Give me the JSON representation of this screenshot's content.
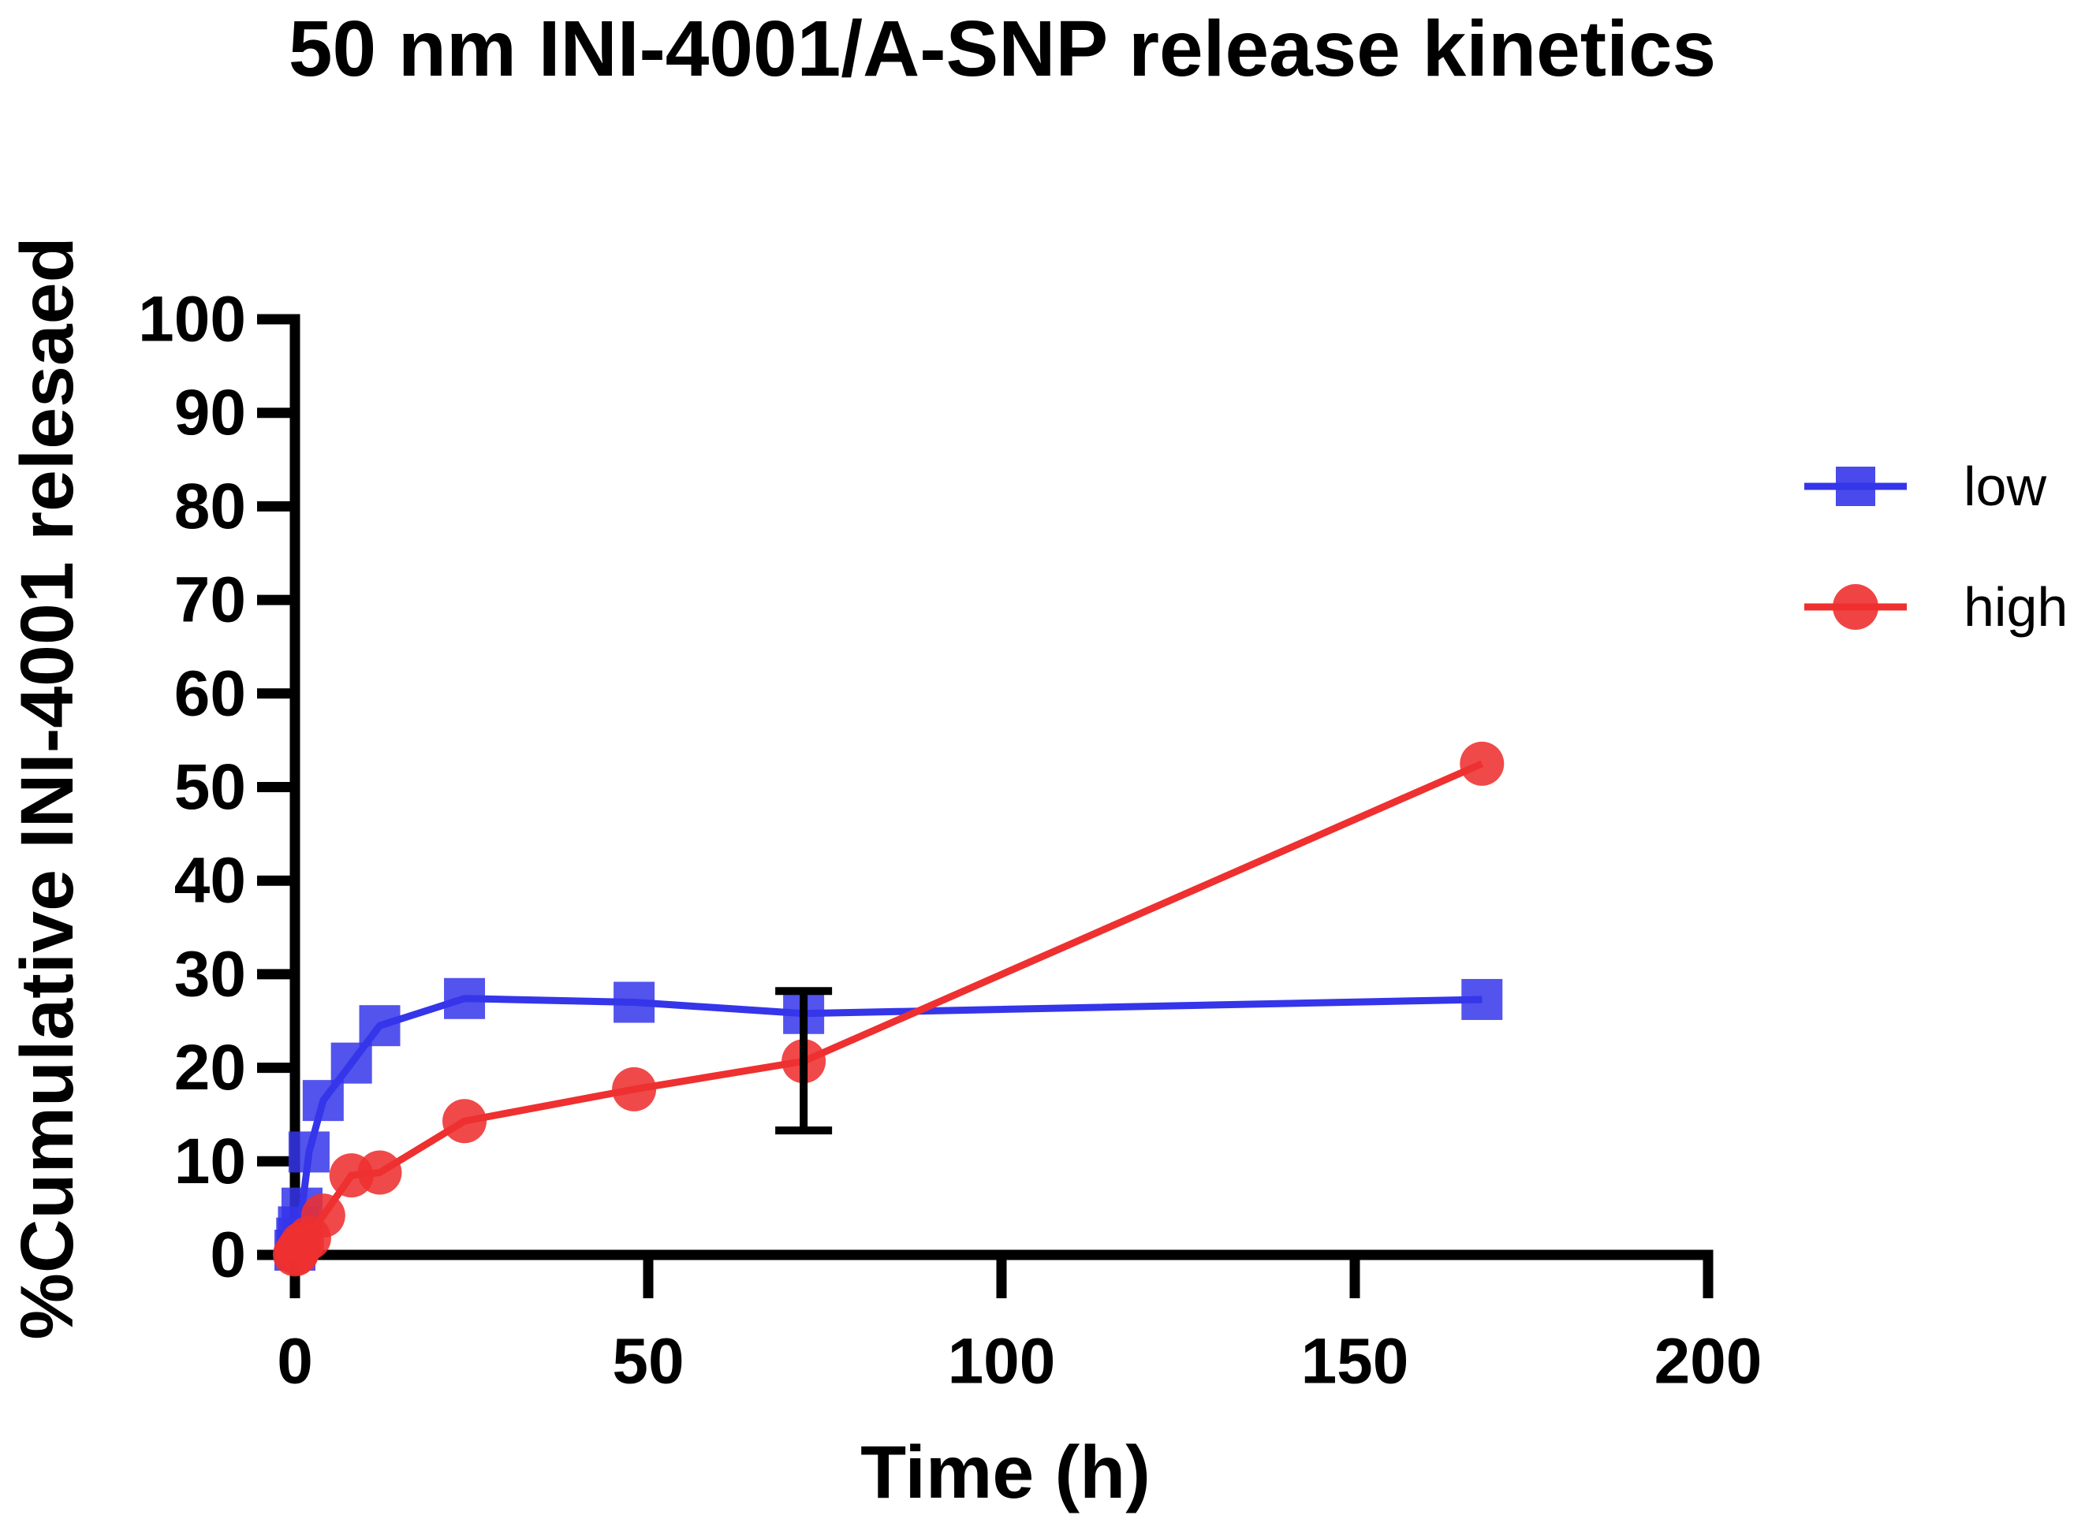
{
  "figure": {
    "title": "50 nm INI-4001/A-SNP release kinetics",
    "background_color": "#ffffff",
    "axis_color": "#000000"
  },
  "chart_data": {
    "type": "line",
    "title": "50 nm INI-4001/A-SNP release kinetics",
    "xlabel": "Time (h)",
    "ylabel": "%Cumulative INI-4001 relesaed",
    "xlim": [
      0,
      200
    ],
    "ylim": [
      0,
      100
    ],
    "xticks": [
      0,
      50,
      100,
      150,
      200
    ],
    "yticks": [
      0,
      10,
      20,
      30,
      40,
      50,
      60,
      70,
      80,
      90,
      100
    ],
    "grid": false,
    "legend_position": "right",
    "series": [
      {
        "name": "low",
        "marker": "square",
        "color": "#3535ea",
        "x": [
          0,
          0.25,
          0.5,
          1,
          2,
          4,
          8,
          12,
          24,
          48,
          72,
          168
        ],
        "y": [
          0.5,
          1.8,
          3.0,
          5.0,
          11.0,
          16.5,
          20.5,
          24.5,
          27.4,
          27.0,
          25.8,
          27.3
        ]
      },
      {
        "name": "high",
        "marker": "circle",
        "color": "#ee3030",
        "x": [
          0,
          0.25,
          0.5,
          1,
          2,
          4,
          8,
          12,
          24,
          48,
          72,
          168
        ],
        "y": [
          0.05,
          0.2,
          0.6,
          1.2,
          1.8,
          4.2,
          8.5,
          8.8,
          14.3,
          17.7,
          20.7,
          52.5
        ]
      }
    ],
    "error_bars": [
      {
        "series": "high",
        "x": 72,
        "y": 20.7,
        "minus": 7.4,
        "plus": 7.5,
        "color": "#000000"
      }
    ]
  }
}
